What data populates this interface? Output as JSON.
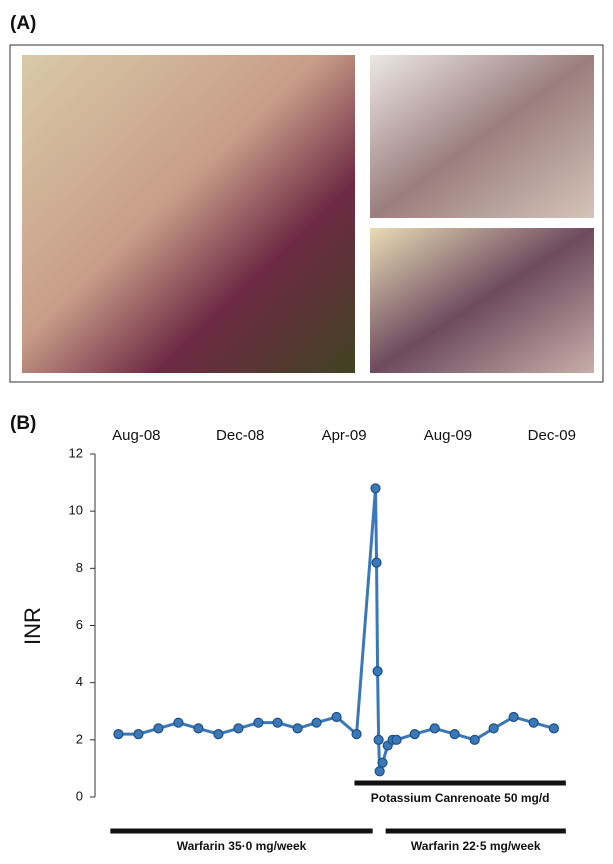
{
  "panel_a_label": "(A)",
  "chart_data": {
    "type": "line",
    "panel_label": "(B)",
    "y_label": "INR",
    "x": [
      -0.69,
      0.08,
      0.85,
      1.62,
      2.39,
      3.16,
      3.93,
      4.7,
      5.44,
      6.21,
      6.94,
      7.71,
      8.48,
      9.21,
      9.25,
      9.29,
      9.33,
      9.37,
      9.48,
      9.68,
      9.87,
      10.02,
      10.72,
      11.49,
      12.26,
      13.03,
      13.76,
      14.53,
      15.3,
      16.08
    ],
    "series": [
      {
        "name": "INR",
        "color": "#3a78b8",
        "values": [
          2.2,
          2.2,
          2.4,
          2.6,
          2.4,
          2.2,
          2.4,
          2.6,
          2.6,
          2.4,
          2.6,
          2.8,
          2.2,
          10.8,
          8.2,
          4.4,
          2.0,
          0.9,
          1.2,
          1.8,
          2.0,
          2.0,
          2.2,
          2.4,
          2.2,
          2.0,
          2.4,
          2.8,
          2.6,
          2.4
        ]
      }
    ],
    "xlim": [
      -1.4,
      16.7
    ],
    "xticks": [
      {
        "value": 0,
        "label": "Aug-08"
      },
      {
        "value": 4,
        "label": "Dec-08"
      },
      {
        "value": 8,
        "label": "Apr-09"
      },
      {
        "value": 12,
        "label": "Aug-09"
      },
      {
        "value": 16,
        "label": "Dec-09"
      }
    ],
    "ylim": [
      0,
      12
    ],
    "yticks": [
      0,
      2,
      4,
      6,
      8,
      10,
      12
    ],
    "periods": [
      {
        "label": "Potassium Canrenoate  50 mg/d",
        "start": 8.4,
        "end": 16.54,
        "row": 0
      },
      {
        "label": "Warfarin  35·0 mg/week",
        "start": -1.0,
        "end": 9.1,
        "row": 1
      },
      {
        "label": "Warfarin  22·5 mg/week",
        "start": 9.6,
        "end": 16.54,
        "row": 1
      }
    ]
  }
}
